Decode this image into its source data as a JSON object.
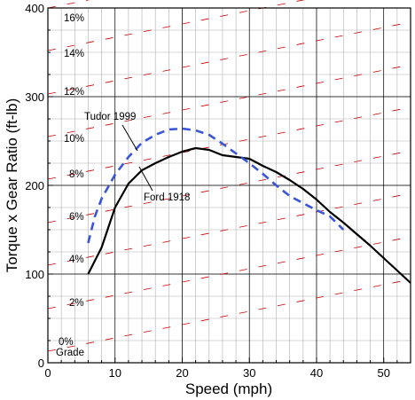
{
  "chart_data": {
    "type": "line",
    "xlabel": "Speed (mph)",
    "ylabel": "Torque x Gear Ratio (ft-lb)",
    "xlim": [
      0,
      54
    ],
    "ylim": [
      0,
      400
    ],
    "x_ticks": [
      0,
      10,
      20,
      30,
      40,
      50
    ],
    "y_ticks": [
      0,
      100,
      200,
      300,
      400
    ],
    "x_tick_labels": [
      "0",
      "10",
      "20",
      "30",
      "40",
      "50"
    ],
    "y_tick_labels": [
      "0",
      "100",
      "200",
      "300",
      "400"
    ],
    "grid": true,
    "minor_grid_x_step": 2,
    "minor_grid_y_step": 25,
    "grade_lines": {
      "percents": [
        0,
        2,
        4,
        6,
        8,
        10,
        12,
        14,
        16
      ],
      "labels": [
        "0%",
        "2%",
        "4%",
        "6%",
        "8%",
        "10%",
        "12%",
        "14%",
        "16%"
      ],
      "caption": "Grade",
      "y_at_zero_speed": [
        13,
        61,
        110,
        158,
        207,
        255,
        303,
        352,
        400
      ],
      "slope_per_mph": 1.5,
      "color": "#cc0000"
    },
    "series": [
      {
        "name": "Ford 1918",
        "color": "#000000",
        "style": "solid",
        "x": [
          6,
          8,
          10,
          12,
          14,
          16,
          18,
          20,
          22,
          24,
          26,
          28,
          30,
          32,
          34,
          36,
          38,
          40,
          42,
          44,
          46,
          48,
          50,
          52,
          54
        ],
        "y": [
          100,
          130,
          175,
          202,
          217,
          225,
          232,
          238,
          242,
          240,
          234,
          232,
          230,
          222,
          215,
          206,
          196,
          184,
          170,
          158,
          145,
          132,
          118,
          104,
          90
        ]
      },
      {
        "name": "Tudor 1999",
        "color": "#3a56d8",
        "style": "dashed",
        "x": [
          6,
          7,
          8,
          10,
          12,
          14,
          16,
          18,
          20,
          22,
          24,
          26,
          28,
          30,
          32,
          34,
          36,
          38,
          40,
          42,
          44
        ],
        "y": [
          135,
          165,
          185,
          212,
          232,
          248,
          257,
          263,
          264,
          262,
          257,
          247,
          236,
          225,
          213,
          200,
          188,
          180,
          172,
          165,
          150
        ]
      }
    ],
    "annotations": [
      "Tudor 1999",
      "Ford 1918"
    ]
  }
}
